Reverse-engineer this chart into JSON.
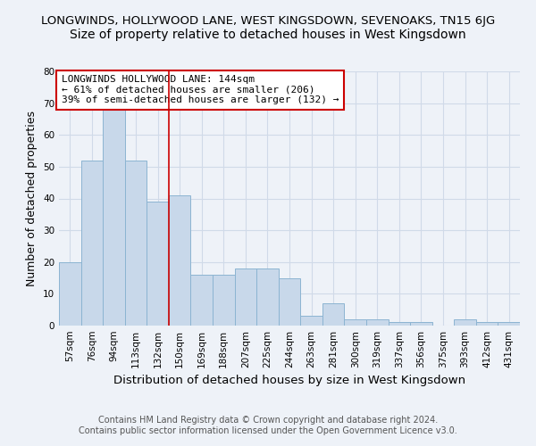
{
  "title": "LONGWINDS, HOLLYWOOD LANE, WEST KINGSDOWN, SEVENOAKS, TN15 6JG",
  "subtitle": "Size of property relative to detached houses in West Kingsdown",
  "xlabel": "Distribution of detached houses by size in West Kingsdown",
  "ylabel": "Number of detached properties",
  "categories": [
    "57sqm",
    "76sqm",
    "94sqm",
    "113sqm",
    "132sqm",
    "150sqm",
    "169sqm",
    "188sqm",
    "207sqm",
    "225sqm",
    "244sqm",
    "263sqm",
    "281sqm",
    "300sqm",
    "319sqm",
    "337sqm",
    "356sqm",
    "375sqm",
    "393sqm",
    "412sqm",
    "431sqm"
  ],
  "values": [
    20,
    52,
    68,
    52,
    39,
    41,
    16,
    16,
    18,
    18,
    15,
    3,
    7,
    2,
    2,
    1,
    1,
    0,
    2,
    1,
    1
  ],
  "bar_color": "#c8d8ea",
  "bar_edge_color": "#8cb4d2",
  "background_color": "#eef2f8",
  "grid_color": "#d0dae8",
  "vline_color": "#cc0000",
  "vline_x_index": 5,
  "annotation_text": "LONGWINDS HOLLYWOOD LANE: 144sqm\n← 61% of detached houses are smaller (206)\n39% of semi-detached houses are larger (132) →",
  "annotation_box_facecolor": "#ffffff",
  "annotation_box_edgecolor": "#cc0000",
  "ylim": [
    0,
    80
  ],
  "yticks": [
    0,
    10,
    20,
    30,
    40,
    50,
    60,
    70,
    80
  ],
  "footer_text": "Contains HM Land Registry data © Crown copyright and database right 2024.\nContains public sector information licensed under the Open Government Licence v3.0.",
  "title_fontsize": 9.5,
  "subtitle_fontsize": 10,
  "xlabel_fontsize": 9.5,
  "ylabel_fontsize": 9,
  "annotation_fontsize": 8,
  "tick_fontsize": 7.5,
  "footer_fontsize": 7
}
